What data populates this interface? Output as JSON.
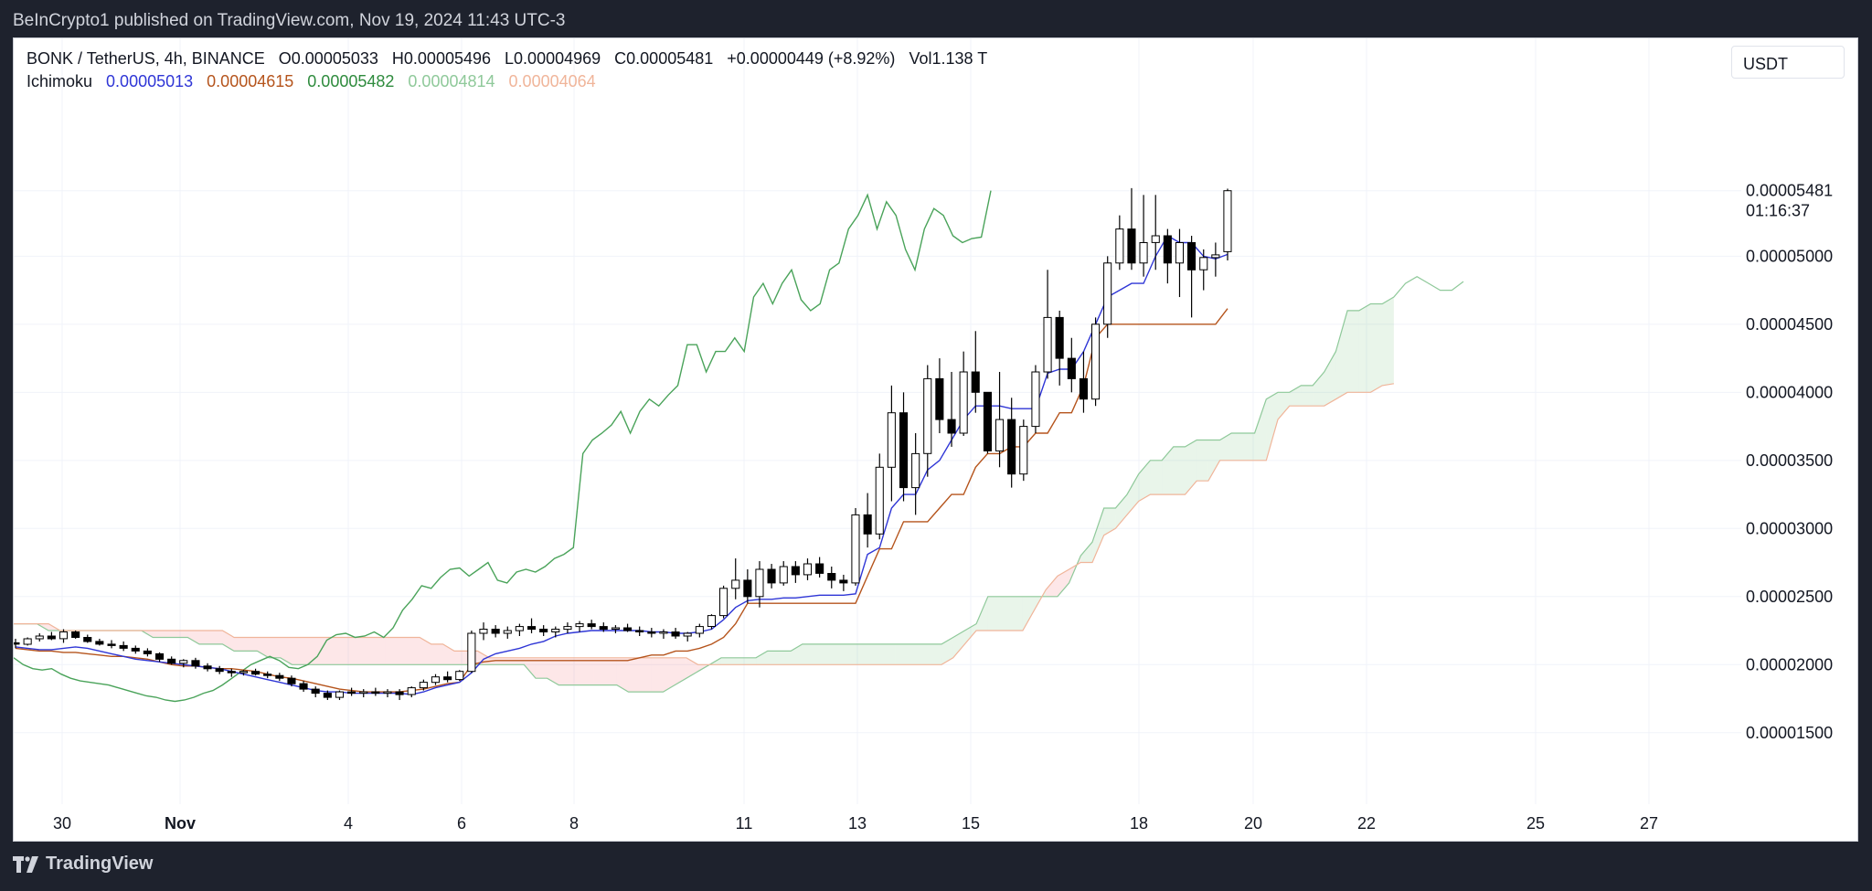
{
  "header": {
    "published": "BeInCrypto1 published on TradingView.com, Nov 19, 2024 11:43 UTC-3"
  },
  "legend": {
    "symbol": "BONK / TetherUS, 4h, BINANCE",
    "open": "O0.00005033",
    "high": "H0.00005496",
    "low": "L0.00004969",
    "close": "C0.00005481",
    "change": "+0.00000449 (+8.92%)",
    "volume": "Vol1.138 T"
  },
  "indicator": {
    "name": "Ichimoku",
    "values": [
      "0.00005013",
      "0.00004615",
      "0.00005482",
      "0.00004814",
      "0.00004064"
    ],
    "colors": [
      "#2f36d6",
      "#b5541c",
      "#2e8b3d",
      "#8fc99a",
      "#f0b59a"
    ]
  },
  "currency_button": "USDT",
  "footer": {
    "brand": "TradingView"
  },
  "chart_data": {
    "type": "candlestick",
    "symbol": "BONK / TetherUS",
    "interval": "4h",
    "x_ticks": [
      "30",
      "Nov",
      "4",
      "6",
      "8",
      "11",
      "13",
      "15",
      "18",
      "20",
      "22",
      "25",
      "27"
    ],
    "y_ticks": [
      "0.00005000",
      "0.00004500",
      "0.00004000",
      "0.00003500",
      "0.00003000",
      "0.00002500",
      "0.00002000",
      "0.00001500"
    ],
    "y_range": [
      1.25e-05,
      6.6e-05
    ],
    "last_price": "0.00005481",
    "countdown": "01:16:37",
    "candles_ohlc_e8": [
      [
        2160,
        2190,
        2120,
        2150
      ],
      [
        2150,
        2200,
        2140,
        2190
      ],
      [
        2190,
        2230,
        2170,
        2210
      ],
      [
        2210,
        2240,
        2180,
        2190
      ],
      [
        2190,
        2260,
        2160,
        2240
      ],
      [
        2240,
        2250,
        2190,
        2200
      ],
      [
        2200,
        2220,
        2160,
        2170
      ],
      [
        2170,
        2190,
        2140,
        2150
      ],
      [
        2150,
        2180,
        2120,
        2140
      ],
      [
        2140,
        2170,
        2100,
        2120
      ],
      [
        2120,
        2140,
        2080,
        2100
      ],
      [
        2100,
        2120,
        2060,
        2080
      ],
      [
        2080,
        2090,
        2020,
        2040
      ],
      [
        2040,
        2060,
        2000,
        2010
      ],
      [
        2010,
        2040,
        1980,
        2030
      ],
      [
        2030,
        2050,
        1970,
        1990
      ],
      [
        1990,
        2010,
        1950,
        1970
      ],
      [
        1970,
        1990,
        1930,
        1950
      ],
      [
        1950,
        1970,
        1910,
        1940
      ],
      [
        1940,
        1960,
        1920,
        1950
      ],
      [
        1950,
        1970,
        1920,
        1930
      ],
      [
        1930,
        1950,
        1900,
        1920
      ],
      [
        1920,
        1940,
        1880,
        1900
      ],
      [
        1900,
        1920,
        1840,
        1860
      ],
      [
        1860,
        1880,
        1800,
        1820
      ],
      [
        1820,
        1840,
        1760,
        1790
      ],
      [
        1790,
        1810,
        1740,
        1760
      ],
      [
        1760,
        1810,
        1740,
        1800
      ],
      [
        1800,
        1830,
        1770,
        1790
      ],
      [
        1790,
        1820,
        1760,
        1800
      ],
      [
        1800,
        1830,
        1770,
        1790
      ],
      [
        1790,
        1820,
        1760,
        1800
      ],
      [
        1800,
        1820,
        1740,
        1780
      ],
      [
        1780,
        1840,
        1760,
        1830
      ],
      [
        1830,
        1890,
        1810,
        1870
      ],
      [
        1870,
        1930,
        1850,
        1910
      ],
      [
        1910,
        1950,
        1870,
        1890
      ],
      [
        1890,
        1960,
        1880,
        1950
      ],
      [
        1950,
        2250,
        1940,
        2230
      ],
      [
        2230,
        2310,
        2180,
        2260
      ],
      [
        2260,
        2290,
        2200,
        2230
      ],
      [
        2230,
        2280,
        2190,
        2250
      ],
      [
        2250,
        2300,
        2210,
        2280
      ],
      [
        2280,
        2340,
        2230,
        2260
      ],
      [
        2260,
        2290,
        2210,
        2240
      ],
      [
        2240,
        2280,
        2200,
        2260
      ],
      [
        2260,
        2310,
        2230,
        2280
      ],
      [
        2280,
        2320,
        2240,
        2300
      ],
      [
        2300,
        2330,
        2260,
        2280
      ],
      [
        2280,
        2310,
        2240,
        2260
      ],
      [
        2260,
        2290,
        2230,
        2270
      ],
      [
        2270,
        2300,
        2240,
        2250
      ],
      [
        2250,
        2280,
        2210,
        2240
      ],
      [
        2240,
        2270,
        2200,
        2230
      ],
      [
        2230,
        2260,
        2190,
        2240
      ],
      [
        2240,
        2270,
        2190,
        2210
      ],
      [
        2210,
        2240,
        2170,
        2230
      ],
      [
        2230,
        2300,
        2200,
        2280
      ],
      [
        2280,
        2370,
        2260,
        2360
      ],
      [
        2360,
        2580,
        2340,
        2560
      ],
      [
        2560,
        2780,
        2480,
        2620
      ],
      [
        2620,
        2700,
        2450,
        2500
      ],
      [
        2500,
        2760,
        2420,
        2700
      ],
      [
        2700,
        2740,
        2560,
        2600
      ],
      [
        2600,
        2760,
        2580,
        2720
      ],
      [
        2720,
        2760,
        2600,
        2660
      ],
      [
        2660,
        2780,
        2620,
        2740
      ],
      [
        2740,
        2790,
        2640,
        2670
      ],
      [
        2670,
        2720,
        2560,
        2620
      ],
      [
        2620,
        2660,
        2540,
        2600
      ],
      [
        2600,
        3150,
        2580,
        3100
      ],
      [
        3100,
        3260,
        2860,
        2960
      ],
      [
        2960,
        3550,
        2920,
        3450
      ],
      [
        3450,
        4050,
        3200,
        3850
      ],
      [
        3850,
        4000,
        3200,
        3300
      ],
      [
        3300,
        3700,
        3100,
        3550
      ],
      [
        3550,
        4200,
        3380,
        4100
      ],
      [
        4100,
        4250,
        3700,
        3800
      ],
      [
        3800,
        4150,
        3600,
        3700
      ],
      [
        3700,
        4300,
        3680,
        4150
      ],
      [
        4150,
        4450,
        3850,
        4000
      ],
      [
        4000,
        4000,
        3550,
        3570
      ],
      [
        3570,
        4150,
        3450,
        3800
      ],
      [
        3800,
        3960,
        3300,
        3400
      ],
      [
        3400,
        3800,
        3350,
        3750
      ],
      [
        3750,
        4200,
        3700,
        4150
      ],
      [
        4150,
        4900,
        4100,
        4550
      ],
      [
        4550,
        4600,
        4050,
        4250
      ],
      [
        4250,
        4400,
        4000,
        4100
      ],
      [
        4100,
        4300,
        3850,
        3950
      ],
      [
        3950,
        4550,
        3900,
        4500
      ],
      [
        4500,
        5000,
        4400,
        4950
      ],
      [
        4950,
        5300,
        4900,
        5200
      ],
      [
        5200,
        5500,
        4900,
        4950
      ],
      [
        4950,
        5450,
        4850,
        5100
      ],
      [
        5100,
        5450,
        4900,
        5150
      ],
      [
        5150,
        5200,
        4800,
        4950
      ],
      [
        4950,
        5200,
        4700,
        5100
      ],
      [
        5100,
        5150,
        4550,
        4900
      ],
      [
        4900,
        5050,
        4750,
        4990
      ],
      [
        4990,
        5100,
        4850,
        5010
      ],
      [
        5033,
        5496,
        4969,
        5481
      ]
    ],
    "tenkan_e8": [
      2130,
      2120,
      2110,
      2110,
      2120,
      2130,
      2120,
      2100,
      2080,
      2060,
      2040,
      2030,
      2020,
      2010,
      2000,
      1990,
      1980,
      1970,
      1950,
      1930,
      1910,
      1890,
      1870,
      1850,
      1830,
      1810,
      1800,
      1800,
      1790,
      1790,
      1790,
      1790,
      1790,
      1780,
      1800,
      1830,
      1850,
      1870,
      1940,
      2040,
      2080,
      2100,
      2120,
      2150,
      2170,
      2210,
      2230,
      2240,
      2250,
      2250,
      2250,
      2250,
      2250,
      2240,
      2240,
      2230,
      2230,
      2240,
      2260,
      2330,
      2420,
      2470,
      2480,
      2480,
      2490,
      2490,
      2500,
      2510,
      2510,
      2510,
      2520,
      2810,
      2860,
      3150,
      3250,
      3250,
      3430,
      3500,
      3650,
      3800,
      3900,
      3900,
      3900,
      3880,
      3880,
      3880,
      4140,
      4170,
      4170,
      4300,
      4500,
      4700,
      4750,
      4800,
      4800,
      5000,
      5150,
      5100,
      5100,
      5000,
      4980,
      5013
    ],
    "kijun_e8": [
      2120,
      2110,
      2100,
      2100,
      2090,
      2090,
      2080,
      2070,
      2060,
      2060,
      2050,
      2040,
      2020,
      2000,
      1990,
      1990,
      1980,
      1970,
      1970,
      1960,
      1950,
      1930,
      1910,
      1900,
      1880,
      1860,
      1840,
      1820,
      1810,
      1800,
      1800,
      1800,
      1800,
      1810,
      1820,
      1840,
      1860,
      1870,
      2000,
      2020,
      2030,
      2030,
      2030,
      2030,
      2030,
      2030,
      2030,
      2030,
      2030,
      2030,
      2030,
      2030,
      2050,
      2070,
      2070,
      2100,
      2100,
      2120,
      2150,
      2200,
      2300,
      2450,
      2450,
      2450,
      2450,
      2450,
      2450,
      2450,
      2450,
      2450,
      2450,
      2650,
      2850,
      2850,
      3050,
      3050,
      3050,
      3150,
      3250,
      3250,
      3450,
      3550,
      3550,
      3600,
      3600,
      3700,
      3700,
      3850,
      3850,
      4050,
      4400,
      4500,
      4500,
      4500,
      4500,
      4500,
      4500,
      4500,
      4500,
      4500,
      4500,
      4615
    ],
    "chikou_e8": [
      2050,
      2000,
      1970,
      1960,
      1970,
      1930,
      1900,
      1880,
      1870,
      1860,
      1850,
      1830,
      1810,
      1790,
      1770,
      1760,
      1740,
      1730,
      1740,
      1760,
      1790,
      1810,
      1850,
      1900,
      1950,
      2000,
      2030,
      2060,
      2030,
      1980,
      1970,
      2000,
      2060,
      2180,
      2220,
      2230,
      2200,
      2210,
      2240,
      2200,
      2270,
      2400,
      2480,
      2580,
      2560,
      2640,
      2700,
      2710,
      2650,
      2700,
      2750,
      2620,
      2600,
      2680,
      2700,
      2680,
      2720,
      2780,
      2810,
      2860,
      3550,
      3650,
      3700,
      3760,
      3860,
      3700,
      3860,
      3950,
      3900,
      3980,
      4050,
      4350,
      4350,
      4150,
      4300,
      4300,
      4400,
      4300,
      4700,
      4800,
      4650,
      4800,
      4900,
      4680,
      4600,
      4650,
      4900,
      4950,
      5200,
      5300,
      5450,
      5200,
      5400,
      5300,
      5050,
      4900,
      5200,
      5350,
      5300,
      5150,
      5100,
      5130,
      5140,
      5482
    ],
    "span_a_e8": [
      2300,
      2300,
      2300,
      2250,
      2250,
      2250,
      2250,
      2250,
      2250,
      2250,
      2250,
      2250,
      2200,
      2200,
      2200,
      2200,
      2150,
      2150,
      2150,
      2100,
      2100,
      2100,
      2050,
      2050,
      2000,
      2000,
      2000,
      2000,
      2000,
      2000,
      2000,
      2000,
      2000,
      2000,
      2000,
      2000,
      2000,
      2000,
      2000,
      2000,
      2000,
      2000,
      2000,
      2000,
      2000,
      1900,
      1900,
      1850,
      1850,
      1850,
      1850,
      1850,
      1850,
      1800,
      1800,
      1800,
      1800,
      1850,
      1900,
      1950,
      2000,
      2050,
      2050,
      2050,
      2050,
      2100,
      2100,
      2100,
      2150,
      2150,
      2150,
      2150,
      2150,
      2150,
      2150,
      2150,
      2150,
      2150,
      2150,
      2150,
      2150,
      2200,
      2250,
      2300,
      2500,
      2500,
      2500,
      2500,
      2500,
      2500,
      2500,
      2600,
      2800,
      2900,
      3150,
      3150,
      3250,
      3400,
      3500,
      3500,
      3600,
      3600,
      3650,
      3650,
      3650,
      3700,
      3700,
      3700,
      3950,
      4000,
      4000,
      4050,
      4050,
      4150,
      4300,
      4600,
      4600,
      4650,
      4650,
      4700,
      4800,
      4850,
      4800,
      4750,
      4750,
      4814
    ],
    "span_b_e8": [
      2300,
      2300,
      2300,
      2300,
      2250,
      2250,
      2250,
      2250,
      2250,
      2250,
      2250,
      2250,
      2250,
      2250,
      2250,
      2250,
      2250,
      2250,
      2250,
      2200,
      2200,
      2200,
      2200,
      2200,
      2200,
      2200,
      2200,
      2200,
      2200,
      2200,
      2200,
      2200,
      2200,
      2200,
      2200,
      2200,
      2150,
      2150,
      2100,
      2100,
      2100,
      2050,
      2050,
      2050,
      2050,
      2050,
      2050,
      2050,
      2050,
      2050,
      2050,
      2050,
      2050,
      2050,
      2050,
      2050,
      2050,
      2050,
      2050,
      2000,
      2000,
      2000,
      2000,
      2000,
      2000,
      2000,
      2000,
      2000,
      2000,
      2000,
      2000,
      2000,
      2000,
      2000,
      2000,
      2000,
      2000,
      2000,
      2000,
      2000,
      2000,
      2050,
      2150,
      2250,
      2250,
      2250,
      2250,
      2250,
      2400,
      2550,
      2650,
      2700,
      2750,
      2750,
      2950,
      3000,
      3100,
      3200,
      3250,
      3250,
      3250,
      3250,
      3350,
      3350,
      3500,
      3500,
      3500,
      3500,
      3500,
      3800,
      3900,
      3900,
      3900,
      3900,
      3950,
      4000,
      4000,
      4000,
      4050,
      4064
    ]
  }
}
